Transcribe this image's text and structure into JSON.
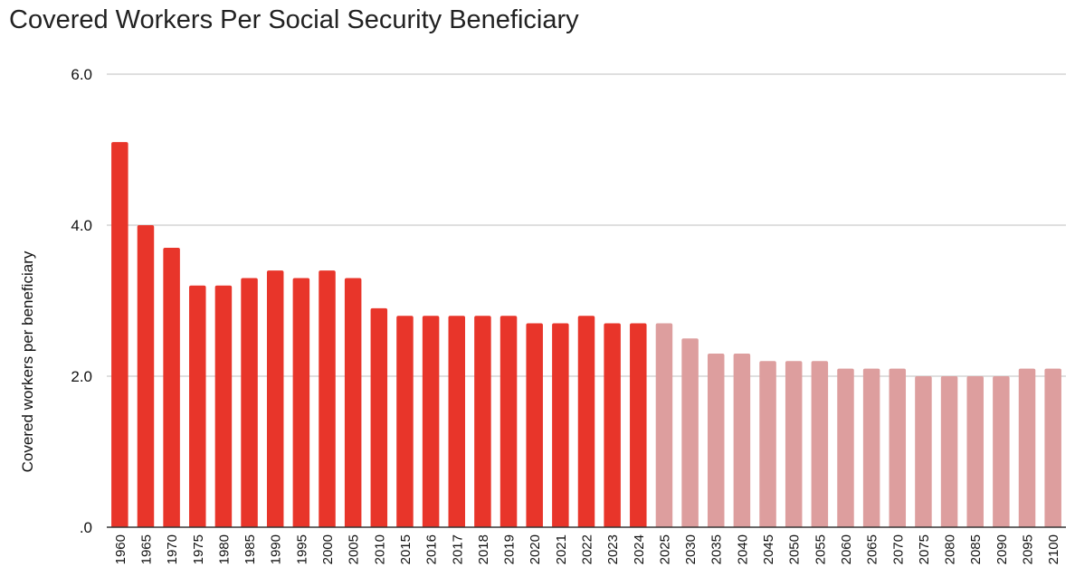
{
  "chart_data": {
    "type": "bar",
    "title": "Covered Workers Per Social Security Beneficiary",
    "xlabel": "",
    "ylabel": "Covered workers per beneficiary",
    "ylim": [
      0,
      6
    ],
    "y_ticks": [
      ".0",
      "2.0",
      "4.0",
      "6.0"
    ],
    "y_tick_values": [
      0,
      2,
      4,
      6
    ],
    "grid": true,
    "legend": "none",
    "colors": {
      "historical": "#e8352a",
      "projected": "#dd9e9e",
      "grid": "#cccccc",
      "axis": "#333333"
    },
    "categories": [
      "1960",
      "1965",
      "1970",
      "1975",
      "1980",
      "1985",
      "1990",
      "1995",
      "2000",
      "2005",
      "2010",
      "2015",
      "2016",
      "2017",
      "2018",
      "2019",
      "2020",
      "2021",
      "2022",
      "2023",
      "2024",
      "2025",
      "2030",
      "2035",
      "2040",
      "2045",
      "2050",
      "2055",
      "2060",
      "2065",
      "2070",
      "2075",
      "2080",
      "2085",
      "2090",
      "2095",
      "2100"
    ],
    "values": [
      5.1,
      4.0,
      3.7,
      3.2,
      3.2,
      3.3,
      3.4,
      3.3,
      3.4,
      3.3,
      2.9,
      2.8,
      2.8,
      2.8,
      2.8,
      2.8,
      2.7,
      2.7,
      2.8,
      2.7,
      2.7,
      2.7,
      2.5,
      2.3,
      2.3,
      2.2,
      2.2,
      2.2,
      2.1,
      2.1,
      2.1,
      2.0,
      2.0,
      2.0,
      2.0,
      2.1,
      2.1
    ],
    "projected": [
      false,
      false,
      false,
      false,
      false,
      false,
      false,
      false,
      false,
      false,
      false,
      false,
      false,
      false,
      false,
      false,
      false,
      false,
      false,
      false,
      false,
      true,
      true,
      true,
      true,
      true,
      true,
      true,
      true,
      true,
      true,
      true,
      true,
      true,
      true,
      true,
      true
    ]
  }
}
